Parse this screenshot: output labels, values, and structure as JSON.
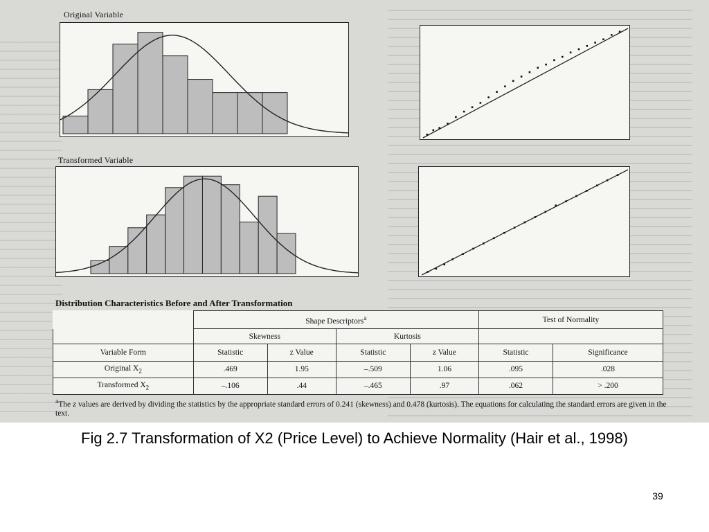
{
  "figure": {
    "panels": {
      "original_label": "Original Variable",
      "transformed_label": "Transformed Variable"
    },
    "chart_data": [
      {
        "type": "bar",
        "name": "original-histogram",
        "values": [
          1.2,
          3.0,
          6.1,
          6.9,
          5.3,
          3.7,
          2.8,
          2.8,
          2.8
        ],
        "normal_curve": true,
        "curve_color": "#222222"
      },
      {
        "type": "scatter",
        "name": "original-normal-probability-plot",
        "reference_line": true,
        "points": [
          [
            0.02,
            0.03
          ],
          [
            0.05,
            0.07
          ],
          [
            0.08,
            0.09
          ],
          [
            0.12,
            0.13
          ],
          [
            0.16,
            0.19
          ],
          [
            0.2,
            0.24
          ],
          [
            0.24,
            0.28
          ],
          [
            0.28,
            0.32
          ],
          [
            0.32,
            0.37
          ],
          [
            0.36,
            0.42
          ],
          [
            0.4,
            0.47
          ],
          [
            0.44,
            0.52
          ],
          [
            0.48,
            0.56
          ],
          [
            0.52,
            0.6
          ],
          [
            0.56,
            0.64
          ],
          [
            0.6,
            0.67
          ],
          [
            0.64,
            0.71
          ],
          [
            0.68,
            0.74
          ],
          [
            0.72,
            0.78
          ],
          [
            0.76,
            0.81
          ],
          [
            0.8,
            0.84
          ],
          [
            0.84,
            0.87
          ],
          [
            0.88,
            0.9
          ],
          [
            0.92,
            0.94
          ],
          [
            0.96,
            0.97
          ]
        ]
      },
      {
        "type": "bar",
        "name": "transformed-histogram",
        "values": [
          0.9,
          1.9,
          3.2,
          4.1,
          6.0,
          6.8,
          6.8,
          6.2,
          3.6,
          5.4,
          2.8
        ],
        "normal_curve": true,
        "curve_color": "#222222"
      },
      {
        "type": "scatter",
        "name": "transformed-normal-probability-plot",
        "reference_line": true,
        "points": [
          [
            0.03,
            0.03
          ],
          [
            0.07,
            0.06
          ],
          [
            0.11,
            0.1
          ],
          [
            0.15,
            0.15
          ],
          [
            0.2,
            0.2
          ],
          [
            0.25,
            0.25
          ],
          [
            0.3,
            0.3
          ],
          [
            0.35,
            0.35
          ],
          [
            0.4,
            0.4
          ],
          [
            0.45,
            0.45
          ],
          [
            0.5,
            0.5
          ],
          [
            0.55,
            0.55
          ],
          [
            0.6,
            0.6
          ],
          [
            0.65,
            0.66
          ],
          [
            0.7,
            0.7
          ],
          [
            0.75,
            0.75
          ],
          [
            0.8,
            0.8
          ],
          [
            0.85,
            0.85
          ],
          [
            0.9,
            0.9
          ],
          [
            0.95,
            0.95
          ]
        ]
      }
    ]
  },
  "table": {
    "title": "Distribution Characteristics Before and After Transformation",
    "shape_header": "Shape Descriptors",
    "shape_header_mark": "a",
    "normality_header": "Test of Normality",
    "skewness_header": "Skewness",
    "kurtosis_header": "Kurtosis",
    "variable_form_header": "Variable Form",
    "col_headers": [
      "Statistic",
      "z Value",
      "Statistic",
      "z Value",
      "Statistic",
      "Significance"
    ],
    "rows": [
      {
        "label": "Original X",
        "sub": "2",
        "values": [
          ".469",
          "1.95",
          "–.509",
          "1.06",
          ".095",
          ".028"
        ]
      },
      {
        "label": "Transformed X",
        "sub": "2",
        "values": [
          "–.106",
          ".44",
          "–.465",
          ".97",
          ".062",
          "> .200"
        ]
      }
    ],
    "footnote_mark": "a",
    "footnote": "The z values are derived by dividing the statistics by the appropriate standard errors of 0.241 (skewness) and 0.478 (kurtosis). The equations for calculating the standard errors are given in the text."
  },
  "caption": "Fig 2.7  Transformation of X2 (Price Level) to Achieve Normality (Hair et al., 1998)",
  "page_number": "39",
  "colors": {
    "scan_background": "#d9d9d6",
    "bar_fill": "#bdbdbd",
    "ink": "#111111"
  }
}
